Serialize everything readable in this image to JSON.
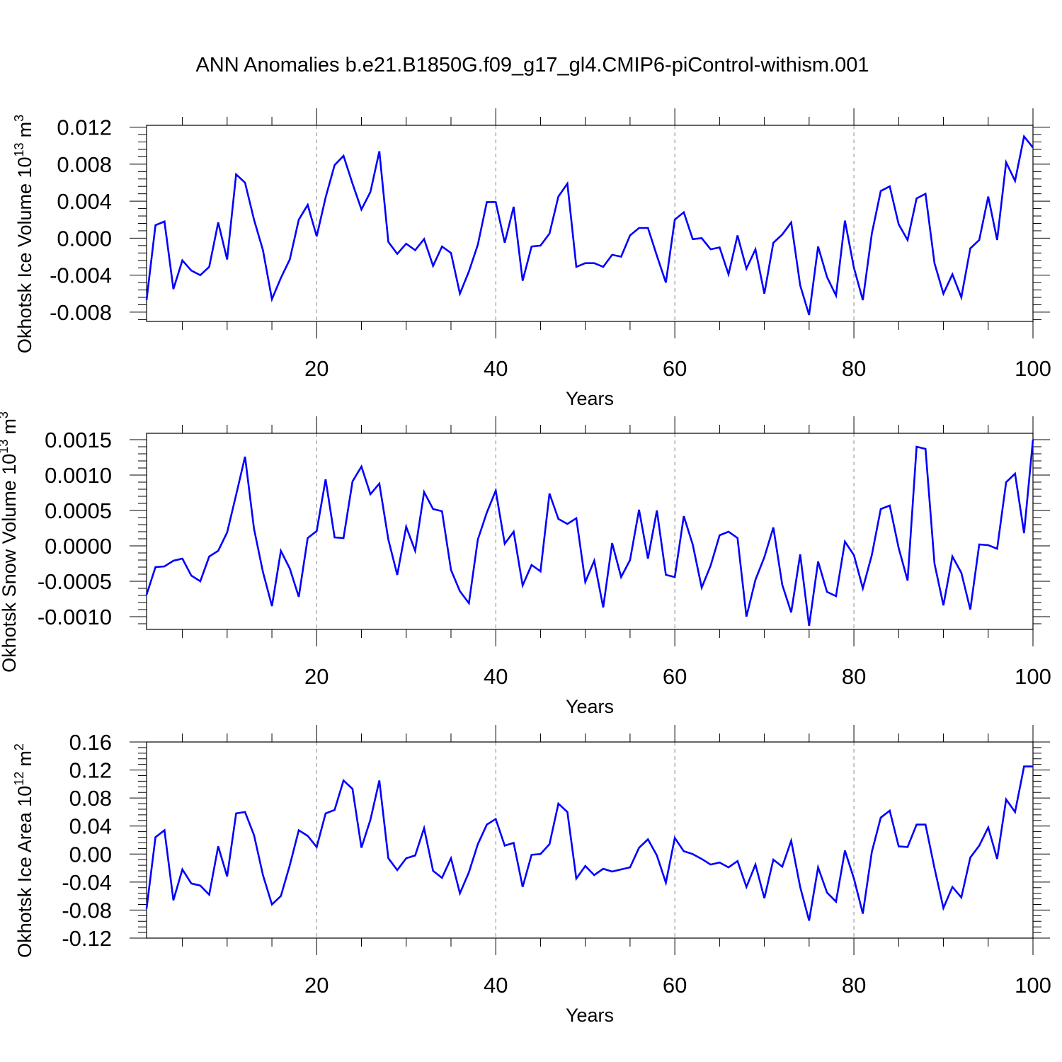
{
  "title": "ANN Anomalies b.e21.B1850G.f09_g17_gl4.CMIP6-piControl-withism.001",
  "colors": {
    "line": "#0000ff",
    "axis": "#000000",
    "grid": "#888888"
  },
  "chart_data": [
    {
      "type": "line",
      "ylabel": "Okhotsk Ice Volume 10",
      "ylabel_exp": "13",
      "ylabel_unit": "m",
      "ylabel_unit_exp": "3",
      "xlabel": "Years",
      "xlim": [
        1,
        100
      ],
      "ylim": [
        -0.009,
        0.0122
      ],
      "xticks": [
        20,
        40,
        60,
        80,
        100
      ],
      "xtick_labels": [
        "20",
        "40",
        "60",
        "80",
        "100"
      ],
      "yticks": [
        -0.008,
        -0.004,
        0.0,
        0.004,
        0.008,
        0.012
      ],
      "ytick_labels": [
        "-0.008",
        "-0.004",
        "0.000",
        "0.004",
        "0.008",
        "0.012"
      ],
      "grid": "dashed vertical at x ticks",
      "series": [
        {
          "values": [
            -0.0067,
            0.0014,
            0.0018,
            -0.0055,
            -0.0024,
            -0.0035,
            -0.004,
            -0.0031,
            0.0017,
            -0.0023,
            0.0069,
            0.006,
            0.002,
            -0.0013,
            -0.0066,
            -0.0043,
            -0.0023,
            0.002,
            0.0036,
            0.0002,
            0.0044,
            0.0079,
            0.0089,
            0.0059,
            0.0031,
            0.005,
            0.0094,
            -0.0004,
            -0.0017,
            -0.0006,
            -0.0013,
            -0.0001,
            -0.003,
            -0.0009,
            -0.0016,
            -0.006,
            -0.0036,
            -0.0007,
            0.0039,
            0.0039,
            -0.0005,
            0.0034,
            -0.0046,
            -0.0009,
            -0.0008,
            0.0005,
            0.0045,
            0.0059,
            -0.0031,
            -0.0027,
            -0.0027,
            -0.0031,
            -0.0018,
            -0.002,
            0.0003,
            0.0011,
            0.0011,
            -0.0019,
            -0.0048,
            0.002,
            0.0028,
            -0.0001,
            0.0,
            -0.0012,
            -0.001,
            -0.0039,
            0.0003,
            -0.0033,
            -0.0012,
            -0.006,
            -0.0005,
            0.0004,
            0.0017,
            -0.0051,
            -0.0083,
            -0.0009,
            -0.0042,
            -0.0062,
            0.0019,
            -0.0032,
            -0.0067,
            0.0005,
            0.0051,
            0.0056,
            0.0015,
            -0.0002,
            0.0043,
            0.0048,
            -0.0027,
            -0.006,
            -0.0039,
            -0.0064,
            -0.0011,
            -0.0002,
            0.0045,
            -0.0002,
            0.0082,
            0.0062,
            0.011,
            0.0098
          ]
        }
      ]
    },
    {
      "type": "line",
      "ylabel": "Okhotsk Snow Volume 10",
      "ylabel_exp": "13",
      "ylabel_unit": "m",
      "ylabel_unit_exp": "3",
      "xlabel": "Years",
      "xlim": [
        1,
        100
      ],
      "ylim": [
        -0.00118,
        0.00159
      ],
      "xticks": [
        20,
        40,
        60,
        80,
        100
      ],
      "xtick_labels": [
        "20",
        "40",
        "60",
        "80",
        "100"
      ],
      "yticks": [
        -0.001,
        -0.0005,
        0.0,
        0.0005,
        0.001,
        0.0015
      ],
      "ytick_labels": [
        "-0.0010",
        "-0.0005",
        "0.0000",
        "0.0005",
        "0.0010",
        "0.0015"
      ],
      "grid": "dashed vertical at x ticks",
      "series": [
        {
          "values": [
            -0.00069,
            -0.0003,
            -0.00029,
            -0.00021,
            -0.00018,
            -0.00042,
            -0.0005,
            -0.00015,
            -7e-05,
            0.00019,
            0.00072,
            0.00126,
            0.00024,
            -0.00037,
            -0.00085,
            -7e-05,
            -0.00032,
            -0.00072,
            0.00011,
            0.00021,
            0.00094,
            0.00012,
            0.00011,
            0.00091,
            0.00112,
            0.00073,
            0.00088,
            9e-05,
            -0.00041,
            0.00027,
            -7e-05,
            0.00076,
            0.00052,
            0.00049,
            -0.00034,
            -0.00064,
            -0.00081,
            9e-05,
            0.00047,
            0.00078,
            3e-05,
            0.0002,
            -0.00056,
            -0.00027,
            -0.00036,
            0.00074,
            0.00038,
            0.00031,
            0.00039,
            -0.00051,
            -0.00021,
            -0.00087,
            4e-05,
            -0.00044,
            -0.0002,
            0.00051,
            -0.00018,
            0.0005,
            -0.00041,
            -0.00044,
            0.00042,
            2e-05,
            -0.00059,
            -0.00028,
            0.00015,
            0.0002,
            0.00011,
            -0.001,
            -0.00048,
            -0.00016,
            0.00026,
            -0.00055,
            -0.00094,
            -0.00012,
            -0.00113,
            -0.00022,
            -0.00065,
            -0.00071,
            6e-05,
            -0.00013,
            -0.0006,
            -0.00013,
            0.00052,
            0.00057,
            -3e-05,
            -0.00049,
            0.0014,
            0.00137,
            -0.00025,
            -0.00084,
            -0.00015,
            -0.00038,
            -0.0009,
            2e-05,
            1e-05,
            -4e-05,
            0.0009,
            0.00102,
            0.00018,
            0.0015
          ]
        }
      ]
    },
    {
      "type": "line",
      "ylabel": "Okhotsk Ice Area 10",
      "ylabel_exp": "12",
      "ylabel_unit": "m",
      "ylabel_unit_exp": "2",
      "xlabel": "Years",
      "xlim": [
        1,
        100
      ],
      "ylim": [
        -0.12,
        0.16
      ],
      "xticks": [
        20,
        40,
        60,
        80,
        100
      ],
      "xtick_labels": [
        "20",
        "40",
        "60",
        "80",
        "100"
      ],
      "yticks": [
        -0.12,
        -0.08,
        -0.04,
        0.0,
        0.04,
        0.08,
        0.12,
        0.16
      ],
      "ytick_labels": [
        "-0.12",
        "-0.08",
        "-0.04",
        "0.00",
        "0.04",
        "0.08",
        "0.12",
        "0.16"
      ],
      "grid": "dashed vertical at x ticks",
      "series": [
        {
          "values": [
            -0.078,
            0.024,
            0.034,
            -0.066,
            -0.022,
            -0.042,
            -0.045,
            -0.058,
            0.011,
            -0.032,
            0.058,
            0.06,
            0.027,
            -0.03,
            -0.072,
            -0.06,
            -0.016,
            0.034,
            0.026,
            0.01,
            0.058,
            0.063,
            0.105,
            0.093,
            0.009,
            0.049,
            0.105,
            -0.006,
            -0.023,
            -0.006,
            -0.002,
            0.037,
            -0.024,
            -0.034,
            -0.006,
            -0.056,
            -0.026,
            0.014,
            0.042,
            0.05,
            0.012,
            0.016,
            -0.047,
            -0.001,
            0.0,
            0.014,
            0.072,
            0.06,
            -0.035,
            -0.017,
            -0.03,
            -0.021,
            -0.025,
            -0.022,
            -0.019,
            0.009,
            0.021,
            -0.002,
            -0.041,
            0.023,
            0.004,
            0.0,
            -0.007,
            -0.015,
            -0.012,
            -0.019,
            -0.01,
            -0.047,
            -0.015,
            -0.063,
            -0.008,
            -0.018,
            0.019,
            -0.047,
            -0.095,
            -0.019,
            -0.055,
            -0.068,
            0.005,
            -0.035,
            -0.085,
            0.003,
            0.052,
            0.062,
            0.011,
            0.01,
            0.042,
            0.042,
            -0.02,
            -0.077,
            -0.047,
            -0.062,
            -0.005,
            0.012,
            0.038,
            -0.007,
            0.078,
            0.06,
            0.125,
            0.125
          ]
        }
      ]
    }
  ]
}
